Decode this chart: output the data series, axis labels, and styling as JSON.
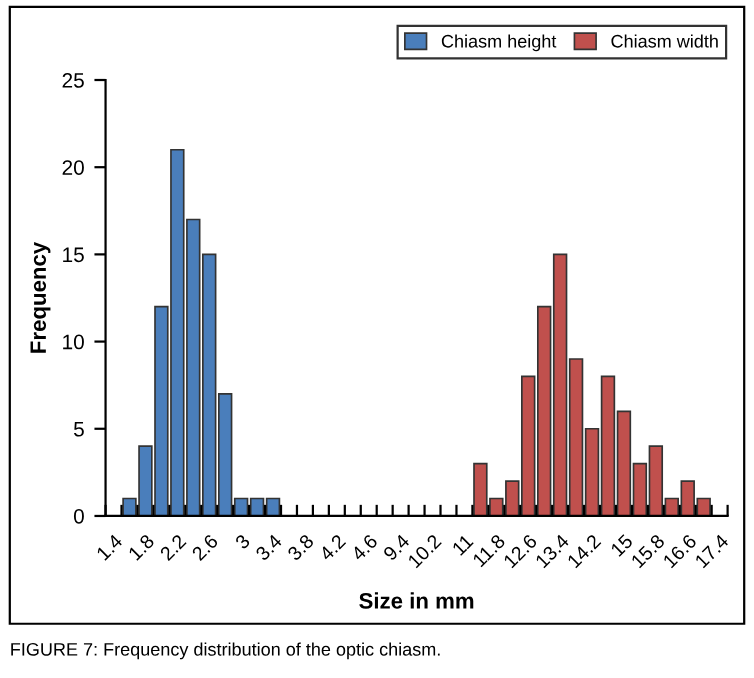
{
  "chart_data": {
    "type": "bar",
    "xlabel": "Size in mm",
    "ylabel": "Frequency",
    "categories": [
      "1.4",
      null,
      "1.8",
      null,
      "2.2",
      null,
      "2.6",
      null,
      "3",
      null,
      "3.4",
      null,
      "3.8",
      null,
      "4.2",
      null,
      "4.6",
      null,
      "9.4",
      null,
      "10.2",
      null,
      "11",
      null,
      "11.8",
      null,
      "12.6",
      null,
      "13.4",
      null,
      "14.2",
      null,
      "15",
      null,
      "15.8",
      null,
      "16.6",
      null,
      "17.4"
    ],
    "series": [
      {
        "name": "Chiasm height",
        "color": "#4a7ebb",
        "values": [
          null,
          1,
          4,
          12,
          21,
          17,
          15,
          7,
          1,
          1,
          1,
          null,
          null,
          null,
          null,
          null,
          null,
          null,
          null,
          null,
          null,
          null,
          null,
          null,
          null,
          null,
          null,
          null,
          null,
          null,
          null,
          null,
          null,
          null,
          null,
          null,
          null,
          null,
          null
        ]
      },
      {
        "name": "Chiasm width",
        "color": "#c0504d",
        "values": [
          null,
          null,
          null,
          null,
          null,
          null,
          null,
          null,
          null,
          null,
          null,
          null,
          null,
          null,
          null,
          null,
          null,
          null,
          null,
          null,
          null,
          null,
          null,
          3,
          1,
          2,
          8,
          12,
          15,
          9,
          5,
          8,
          6,
          3,
          4,
          1,
          2,
          1,
          null
        ]
      }
    ],
    "ylim": [
      0,
      25
    ],
    "yticks": [
      0,
      5,
      10,
      15,
      20,
      25
    ],
    "grid": false,
    "legend": "top right",
    "annotations": [
      "FIGURE 7: Frequency distribution of the optic chiasm."
    ]
  }
}
